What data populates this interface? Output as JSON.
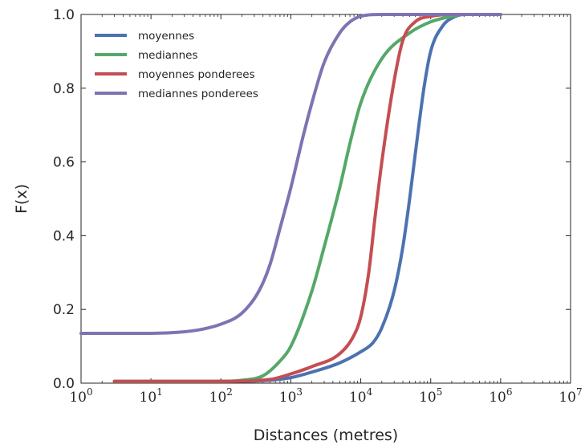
{
  "chart_data": {
    "type": "line",
    "title": "",
    "xlabel": "Distances (metres)",
    "ylabel": "F(x)",
    "xscale": "log",
    "xlim": [
      1,
      10000000
    ],
    "ylim": [
      0,
      1.0
    ],
    "x_ticks": [
      {
        "base": "10",
        "exp": "0"
      },
      {
        "base": "10",
        "exp": "1"
      },
      {
        "base": "10",
        "exp": "2"
      },
      {
        "base": "10",
        "exp": "3"
      },
      {
        "base": "10",
        "exp": "4"
      },
      {
        "base": "10",
        "exp": "5"
      },
      {
        "base": "10",
        "exp": "6"
      },
      {
        "base": "10",
        "exp": "7"
      }
    ],
    "y_ticks": [
      "0.0",
      "0.2",
      "0.4",
      "0.6",
      "0.8",
      "1.0"
    ],
    "grid": false,
    "legend_position": "top-left",
    "series": [
      {
        "name": "moyennes",
        "color": "#4c72b0",
        "points": [
          [
            3,
            0.005
          ],
          [
            100,
            0.005
          ],
          [
            500,
            0.008
          ],
          [
            1000,
            0.015
          ],
          [
            2000,
            0.03
          ],
          [
            5000,
            0.055
          ],
          [
            10000,
            0.085
          ],
          [
            15000,
            0.11
          ],
          [
            20000,
            0.15
          ],
          [
            30000,
            0.25
          ],
          [
            40000,
            0.37
          ],
          [
            50000,
            0.5
          ],
          [
            60000,
            0.62
          ],
          [
            80000,
            0.8
          ],
          [
            100000,
            0.9
          ],
          [
            150000,
            0.97
          ],
          [
            200000,
            0.99
          ],
          [
            300000,
            1.0
          ],
          [
            1000000,
            1.0
          ]
        ]
      },
      {
        "name": "mediannes",
        "color": "#55a868",
        "points": [
          [
            3,
            0.005
          ],
          [
            100,
            0.005
          ],
          [
            200,
            0.008
          ],
          [
            400,
            0.02
          ],
          [
            700,
            0.06
          ],
          [
            1000,
            0.1
          ],
          [
            2000,
            0.25
          ],
          [
            3000,
            0.37
          ],
          [
            5000,
            0.53
          ],
          [
            7000,
            0.65
          ],
          [
            10000,
            0.76
          ],
          [
            20000,
            0.88
          ],
          [
            50000,
            0.95
          ],
          [
            100000,
            0.98
          ],
          [
            200000,
            0.995
          ],
          [
            300000,
            1.0
          ],
          [
            1000000,
            1.0
          ]
        ]
      },
      {
        "name": "moyennes ponderees",
        "color": "#c44e52",
        "points": [
          [
            3,
            0.005
          ],
          [
            100,
            0.005
          ],
          [
            500,
            0.01
          ],
          [
            1000,
            0.025
          ],
          [
            2000,
            0.045
          ],
          [
            5000,
            0.08
          ],
          [
            8000,
            0.13
          ],
          [
            10000,
            0.18
          ],
          [
            13000,
            0.3
          ],
          [
            16000,
            0.45
          ],
          [
            20000,
            0.6
          ],
          [
            30000,
            0.82
          ],
          [
            40000,
            0.93
          ],
          [
            60000,
            0.98
          ],
          [
            100000,
            0.995
          ],
          [
            200000,
            1.0
          ],
          [
            1000000,
            1.0
          ]
        ]
      },
      {
        "name": "mediannes ponderees",
        "color": "#8172b2",
        "points": [
          [
            1,
            0.135
          ],
          [
            10,
            0.135
          ],
          [
            25,
            0.138
          ],
          [
            50,
            0.145
          ],
          [
            100,
            0.16
          ],
          [
            200,
            0.19
          ],
          [
            350,
            0.25
          ],
          [
            500,
            0.32
          ],
          [
            700,
            0.42
          ],
          [
            1000,
            0.53
          ],
          [
            1500,
            0.67
          ],
          [
            2000,
            0.76
          ],
          [
            3000,
            0.87
          ],
          [
            5000,
            0.95
          ],
          [
            7000,
            0.98
          ],
          [
            10000,
            0.995
          ],
          [
            20000,
            1.0
          ],
          [
            1000000,
            1.0
          ]
        ]
      }
    ]
  }
}
